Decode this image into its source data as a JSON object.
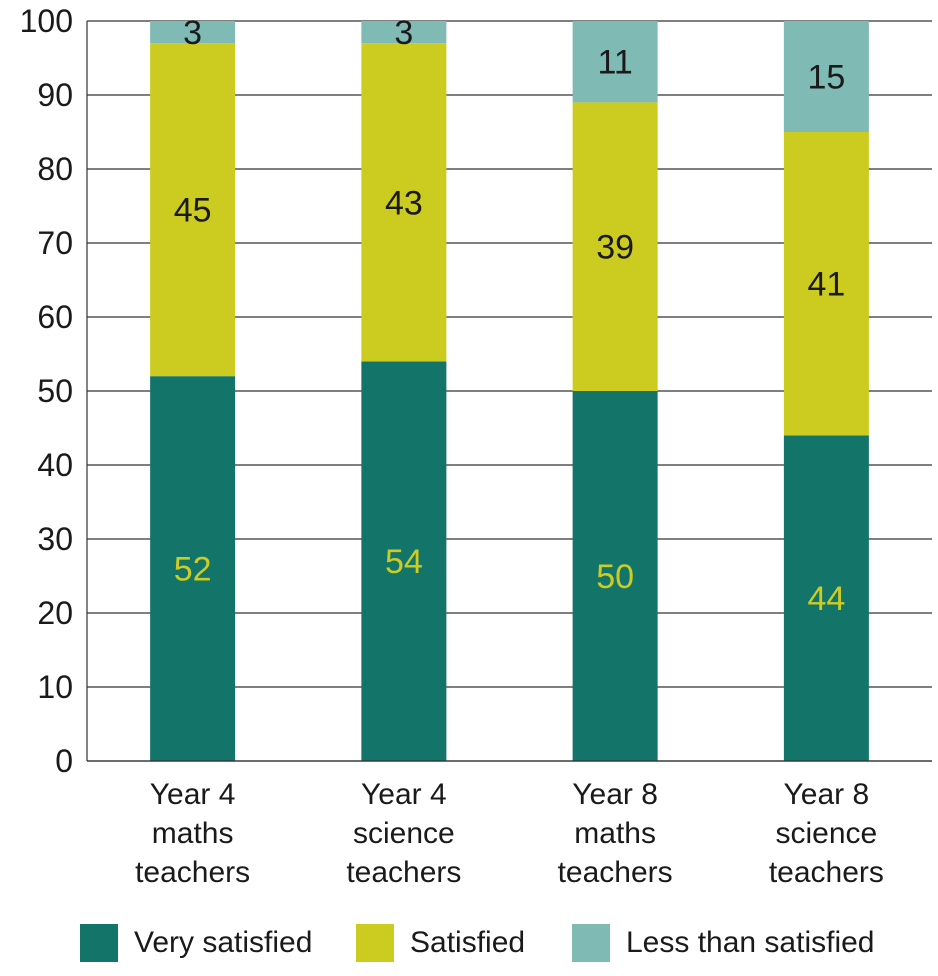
{
  "chart_data": {
    "type": "bar",
    "stacked": true,
    "categories": [
      [
        "Year 4",
        "maths",
        "teachers"
      ],
      [
        "Year 4",
        "science",
        "teachers"
      ],
      [
        "Year 8",
        "maths",
        "teachers"
      ],
      [
        "Year 8",
        "science",
        "teachers"
      ]
    ],
    "series": [
      {
        "name": "Very satisfied",
        "values": [
          52,
          54,
          50,
          44
        ],
        "color": "#137469",
        "label_color": "#cccc22"
      },
      {
        "name": "Satisfied",
        "values": [
          45,
          43,
          39,
          41
        ],
        "color": "#cccb20",
        "label_color": "#1a1a1a"
      },
      {
        "name": "Less than satisfied",
        "values": [
          3,
          3,
          11,
          15
        ],
        "color": "#7fbab4",
        "label_color": "#1a1a1a"
      }
    ],
    "ylim": [
      0,
      100
    ],
    "yticks": [
      0,
      10,
      20,
      30,
      40,
      50,
      60,
      70,
      80,
      90,
      100
    ],
    "grid": true,
    "legend_position": "bottom",
    "title": "",
    "xlabel": "",
    "ylabel": ""
  }
}
